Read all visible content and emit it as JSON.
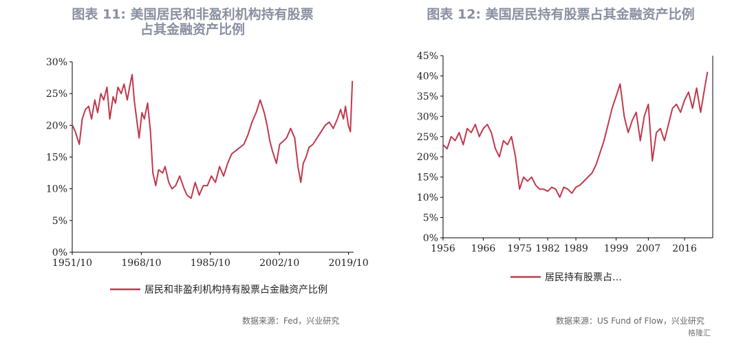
{
  "colors": {
    "line": "#c0384b",
    "title": "#8a8fa0"
  },
  "chart_data": [
    {
      "type": "line",
      "title": "图表 11: 美国居民和非盈利机构持有股票\n占其金融资产比例",
      "title_lines": [
        "图表 11: 美国居民和非盈利机构持有股票",
        "占其金融资产比例"
      ],
      "xlabel": "",
      "ylabel": "",
      "xlim": [
        1951.75,
        2021
      ],
      "ylim": [
        0,
        30
      ],
      "x_ticks": [
        1951.75,
        1968.75,
        1985.75,
        2002.75,
        2019.75
      ],
      "x_tick_labels": [
        "1951/10",
        "1968/10",
        "1985/10",
        "2002/10",
        "2019/10"
      ],
      "y_ticks": [
        0,
        5,
        10,
        15,
        20,
        25,
        30
      ],
      "y_tick_labels": [
        "0%",
        "5%",
        "10%",
        "15%",
        "20%",
        "25%",
        "30%"
      ],
      "grid": false,
      "legend": "bottom",
      "series": [
        {
          "name": "居民和非盈利机构持有股票占金融资产比例",
          "x": [
            1951.8,
            1952.5,
            1953.5,
            1954.2,
            1955,
            1955.8,
            1956.5,
            1957.3,
            1958,
            1958.8,
            1959.5,
            1960.3,
            1961,
            1961.8,
            1962.4,
            1963,
            1963.8,
            1964.5,
            1965.3,
            1966,
            1966.5,
            1967,
            1967.6,
            1968.2,
            1968.9,
            1969.5,
            1970.3,
            1971,
            1971.6,
            1972.3,
            1973,
            1974,
            1974.6,
            1975.5,
            1976.3,
            1977.2,
            1978.2,
            1979.3,
            1980,
            1981,
            1982,
            1983,
            1984,
            1985,
            1986,
            1987,
            1988,
            1989,
            1990,
            1991,
            1992,
            1993,
            1994,
            1995,
            1996,
            1997,
            1998,
            1999,
            1999.7,
            2000.4,
            2001,
            2002,
            2002.8,
            2003.7,
            2004.5,
            2005.5,
            2006.5,
            2007.3,
            2008,
            2008.6,
            2009.3,
            2010,
            2011,
            2012,
            2013,
            2014,
            2015,
            2016,
            2017,
            2017.8,
            2018.5,
            2019,
            2019.7,
            2020.2,
            2020.7
          ],
          "y": [
            20.0,
            19.0,
            17.0,
            21.0,
            22.5,
            23.0,
            21.0,
            24.0,
            22.0,
            25.0,
            24.0,
            26.0,
            21.0,
            24.5,
            23.5,
            26.0,
            25.0,
            26.5,
            24.0,
            26.5,
            28.0,
            24.0,
            21.0,
            18.0,
            22.0,
            21.0,
            23.5,
            19.0,
            12.5,
            10.5,
            13.0,
            12.5,
            13.5,
            11.0,
            10.0,
            10.5,
            12.0,
            10.0,
            9.0,
            8.5,
            11.0,
            9.0,
            10.5,
            10.5,
            12.0,
            11.0,
            13.5,
            12.0,
            14.0,
            15.5,
            16.0,
            16.5,
            17.0,
            18.5,
            20.5,
            22.0,
            24.0,
            22.0,
            20.0,
            17.5,
            16.0,
            14.0,
            17.0,
            17.5,
            18.0,
            19.5,
            18.0,
            13.5,
            11.0,
            14.0,
            15.0,
            16.5,
            17.0,
            18.0,
            19.0,
            20.0,
            20.5,
            19.5,
            21.0,
            22.5,
            21.0,
            23.0,
            20.0,
            19.0,
            27.0
          ]
        }
      ]
    },
    {
      "type": "line",
      "title": "图表 12: 美国居民持有股票占其金融资产比例",
      "xlabel": "",
      "ylabel": "",
      "xlim": [
        1956,
        2023
      ],
      "ylim": [
        0,
        45
      ],
      "x_ticks": [
        1956,
        1966,
        1975,
        1982,
        1989,
        1999,
        2007,
        2016
      ],
      "x_tick_labels": [
        "1956",
        "1966",
        "1975",
        "1982",
        "1989",
        "1999",
        "2007",
        "2016"
      ],
      "y_ticks": [
        0,
        5,
        10,
        15,
        20,
        25,
        30,
        35,
        40,
        45
      ],
      "y_tick_labels": [
        "0%",
        "5%",
        "10%",
        "15%",
        "20%",
        "25%",
        "30%",
        "35%",
        "40%",
        "45%"
      ],
      "grid": false,
      "legend": "bottom",
      "series": [
        {
          "name": "居民持有股票占…",
          "x": [
            1956,
            1957,
            1958,
            1959,
            1960,
            1961,
            1962,
            1963,
            1964,
            1965,
            1966,
            1967,
            1968,
            1969,
            1970,
            1971,
            1972,
            1973,
            1974,
            1975,
            1976,
            1977,
            1978,
            1979,
            1980,
            1981,
            1982,
            1983,
            1984,
            1985,
            1986,
            1987,
            1988,
            1989,
            1990,
            1991,
            1992,
            1993,
            1994,
            1995,
            1996,
            1997,
            1998,
            1999,
            2000,
            2001,
            2002,
            2003,
            2004,
            2005,
            2006,
            2007,
            2008,
            2009,
            2010,
            2011,
            2012,
            2013,
            2014,
            2015,
            2016,
            2017,
            2018,
            2019,
            2020,
            2021,
            2021.7
          ],
          "y": [
            23.0,
            22.0,
            25.0,
            24.0,
            26.0,
            23.0,
            27.0,
            26.0,
            28.0,
            25.0,
            27.0,
            28.0,
            26.0,
            22.0,
            20.0,
            24.0,
            23.0,
            25.0,
            20.0,
            12.0,
            15.0,
            14.0,
            15.0,
            13.0,
            12.0,
            12.0,
            11.5,
            12.5,
            12.0,
            10.0,
            12.5,
            12.0,
            11.0,
            12.5,
            13.0,
            14.0,
            15.0,
            16.0,
            18.0,
            21.0,
            24.0,
            28.0,
            32.0,
            35.0,
            38.0,
            30.0,
            26.0,
            29.0,
            31.0,
            24.0,
            30.0,
            33.0,
            19.0,
            26.0,
            27.0,
            24.0,
            28.0,
            32.0,
            33.0,
            31.0,
            34.0,
            36.0,
            32.0,
            37.0,
            31.0,
            37.0,
            41.0
          ]
        }
      ]
    }
  ],
  "sources": [
    "数据来源：Fed，兴业研究",
    "数据来源：US Fund of Flow，兴业研究"
  ],
  "watermark": "格隆汇"
}
